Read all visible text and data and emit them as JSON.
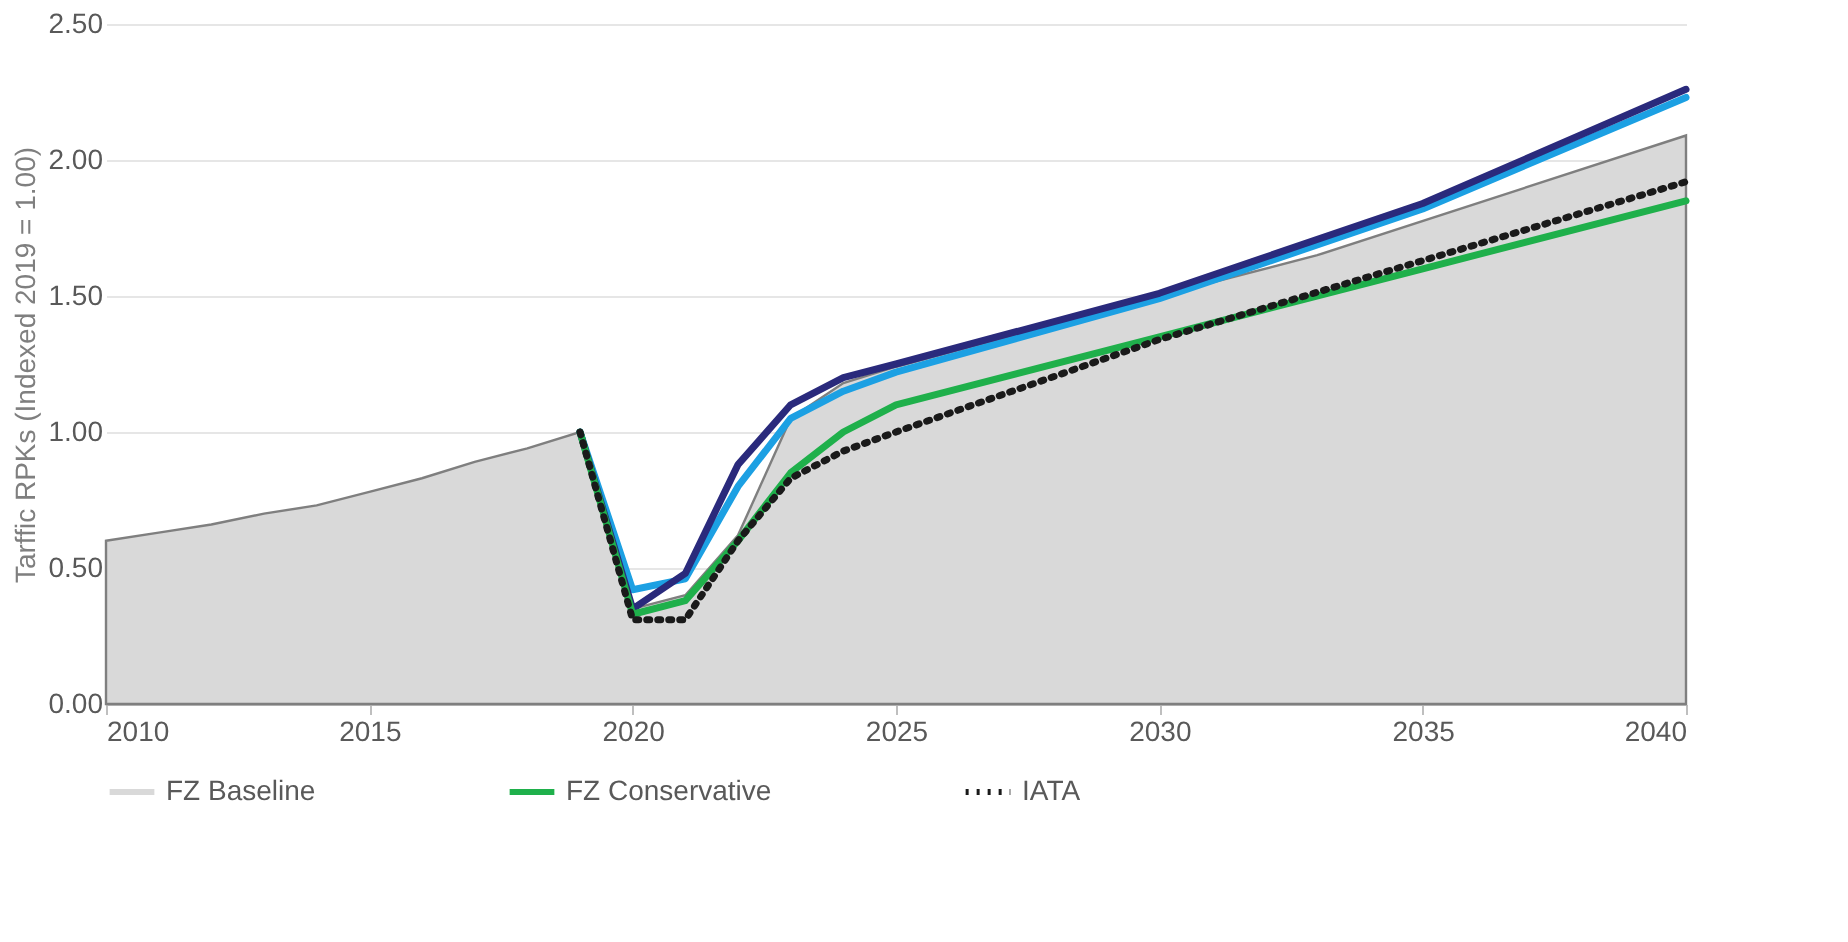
{
  "chart_data": {
    "type": "line",
    "ylabel": "Tarffic RPKs (Indexed 2019 = 1.00)",
    "xlim": [
      2010,
      2040
    ],
    "xticks": [
      2010,
      2015,
      2020,
      2025,
      2030,
      2035,
      2040
    ],
    "ylim": [
      0,
      2.5
    ],
    "yticks": [
      {
        "value": 0,
        "label": "0.00"
      },
      {
        "value": 0.5,
        "label": "0.50"
      },
      {
        "value": 1,
        "label": "1.00"
      },
      {
        "value": 1.5,
        "label": "1.50"
      },
      {
        "value": 2,
        "label": "2.00"
      },
      {
        "value": 2.5,
        "label": "2.50"
      }
    ],
    "grid": "y",
    "legend": "bottom",
    "series": [
      {
        "name": "FZ Baseline",
        "type": "area",
        "color": "#d9d9d9",
        "x": [
          2010,
          2011,
          2012,
          2013,
          2014,
          2015,
          2016,
          2017,
          2018,
          2019,
          2020,
          2021,
          2022,
          2023,
          2024,
          2025,
          2030,
          2033,
          2040
        ],
        "values": [
          0.6,
          0.63,
          0.66,
          0.7,
          0.73,
          0.78,
          0.83,
          0.89,
          0.94,
          1.0,
          0.35,
          0.4,
          0.62,
          1.05,
          1.18,
          1.24,
          1.5,
          1.65,
          2.09
        ]
      },
      {
        "color": "#1ca0e3",
        "x": [
          2019,
          2020,
          2021,
          2022,
          2023,
          2024,
          2025,
          2030,
          2035,
          2040
        ],
        "values": [
          1.0,
          0.42,
          0.46,
          0.8,
          1.05,
          1.15,
          1.22,
          1.49,
          1.82,
          2.23
        ]
      },
      {
        "color": "#2a2a7c",
        "x": [
          2019,
          2020,
          2021,
          2022,
          2023,
          2024,
          2025,
          2030,
          2035,
          2040
        ],
        "values": [
          1.0,
          0.35,
          0.48,
          0.88,
          1.1,
          1.2,
          1.25,
          1.51,
          1.84,
          2.26
        ]
      },
      {
        "name": "FZ Conservative",
        "color": "#1fb04b",
        "x": [
          2019,
          2020,
          2021,
          2022,
          2023,
          2024,
          2025,
          2030,
          2035,
          2040
        ],
        "values": [
          1.0,
          0.33,
          0.38,
          0.6,
          0.85,
          1.0,
          1.1,
          1.35,
          1.6,
          1.85
        ]
      },
      {
        "name": "IATA",
        "color": "#1a1a1a",
        "line_style": "dotted",
        "x": [
          2019,
          2020,
          2021,
          2022,
          2023,
          2024,
          2025,
          2030,
          2035,
          2040
        ],
        "values": [
          1.0,
          0.31,
          0.31,
          0.6,
          0.83,
          0.93,
          1.0,
          1.34,
          1.63,
          1.92
        ]
      }
    ]
  }
}
